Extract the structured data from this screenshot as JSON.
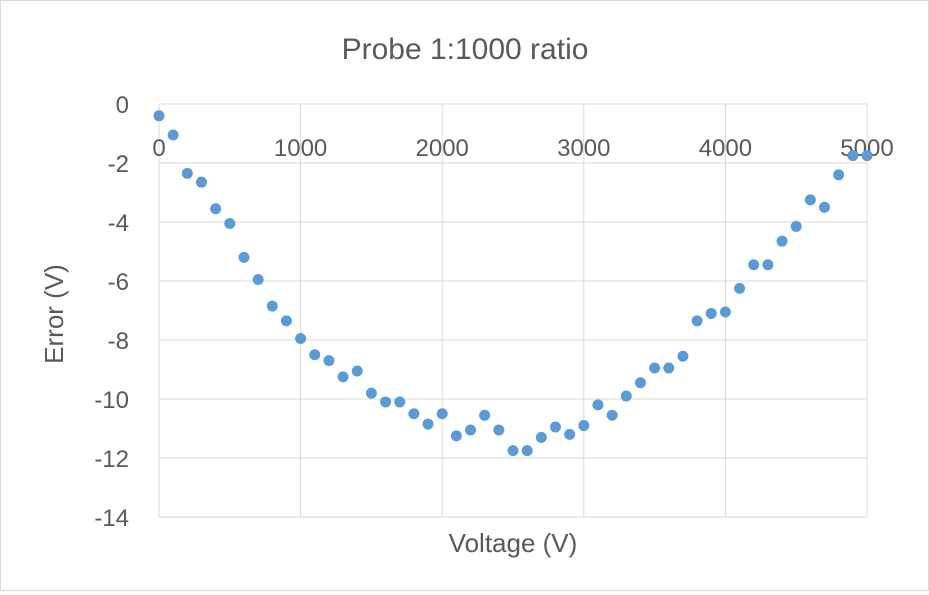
{
  "chart_data": {
    "type": "scatter",
    "title": "Probe 1:1000 ratio",
    "xlabel": "Voltage (V)",
    "ylabel": "Error (V)",
    "xlim": [
      0,
      5000
    ],
    "ylim": [
      -14,
      0
    ],
    "xticks": [
      "0",
      "1000",
      "2000",
      "3000",
      "4000",
      "5000"
    ],
    "yticks": [
      "0",
      "-2",
      "-4",
      "-6",
      "-8",
      "-10",
      "-12",
      "-14"
    ],
    "x_axis_position": "top (at y = 0)",
    "grid": true,
    "legend": "none",
    "marker_color": "#5b9bd5",
    "series": [
      {
        "points": [
          [
            0,
            -0.4
          ],
          [
            100,
            -1.05
          ],
          [
            200,
            -2.35
          ],
          [
            300,
            -2.65
          ],
          [
            400,
            -3.55
          ],
          [
            500,
            -4.05
          ],
          [
            600,
            -5.2
          ],
          [
            700,
            -5.95
          ],
          [
            800,
            -6.85
          ],
          [
            900,
            -7.35
          ],
          [
            1000,
            -7.95
          ],
          [
            1100,
            -8.5
          ],
          [
            1200,
            -8.7
          ],
          [
            1300,
            -9.25
          ],
          [
            1400,
            -9.05
          ],
          [
            1500,
            -9.8
          ],
          [
            1600,
            -10.1
          ],
          [
            1700,
            -10.1
          ],
          [
            1800,
            -10.5
          ],
          [
            1900,
            -10.85
          ],
          [
            2000,
            -10.5
          ],
          [
            2100,
            -11.25
          ],
          [
            2200,
            -11.05
          ],
          [
            2300,
            -10.55
          ],
          [
            2400,
            -11.05
          ],
          [
            2500,
            -11.75
          ],
          [
            2600,
            -11.75
          ],
          [
            2700,
            -11.3
          ],
          [
            2800,
            -10.95
          ],
          [
            2900,
            -11.2
          ],
          [
            3000,
            -10.9
          ],
          [
            3100,
            -10.2
          ],
          [
            3200,
            -10.55
          ],
          [
            3300,
            -9.9
          ],
          [
            3400,
            -9.45
          ],
          [
            3500,
            -8.95
          ],
          [
            3600,
            -8.95
          ],
          [
            3700,
            -8.55
          ],
          [
            3800,
            -7.35
          ],
          [
            3900,
            -7.1
          ],
          [
            4000,
            -7.05
          ],
          [
            4100,
            -6.25
          ],
          [
            4200,
            -5.45
          ],
          [
            4300,
            -5.45
          ],
          [
            4400,
            -4.65
          ],
          [
            4500,
            -4.15
          ],
          [
            4600,
            -3.25
          ],
          [
            4700,
            -3.5
          ],
          [
            4800,
            -2.4
          ],
          [
            4900,
            -1.75
          ],
          [
            5000,
            -1.75
          ]
        ]
      }
    ]
  }
}
